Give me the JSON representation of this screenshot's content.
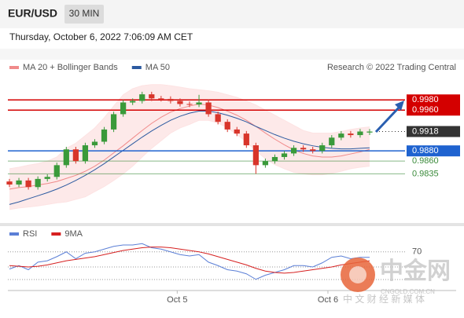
{
  "chart_data": {
    "type": "candlestick",
    "title": "EUR/USD",
    "interval": "30 MIN",
    "timestamp": "Thursday, October 6, 2022 7:06:09 AM CET",
    "attribution": "Research © 2022 Trading Central",
    "xlim": [
      0,
      38
    ],
    "xticks": [
      {
        "value": 17.7,
        "label": "Oct 5"
      },
      {
        "value": 33.6,
        "label": "Oct 6"
      }
    ],
    "ylim": [
      0.9737,
      1.0022
    ],
    "up_color": "#3a9a3a",
    "down_color": "#d8352b",
    "open": [
      0.982,
      0.9814,
      0.9822,
      0.9809,
      0.9825,
      0.9829,
      0.9852,
      0.9883,
      0.986,
      0.9891,
      0.9898,
      0.9922,
      0.9952,
      0.9975,
      0.9978,
      0.9991,
      0.9983,
      0.9982,
      0.9978,
      0.9972,
      0.9971,
      0.9975,
      0.9952,
      0.9937,
      0.9922,
      0.9914,
      0.9891,
      0.9852,
      0.986,
      0.9868,
      0.9875,
      0.9886,
      0.9883,
      0.988,
      0.9891,
      0.9906,
      0.9914,
      0.9911,
      0.9916
    ],
    "high": [
      0.9825,
      0.9827,
      0.9827,
      0.983,
      0.9834,
      0.9857,
      0.9888,
      0.9888,
      0.9896,
      0.9903,
      0.9927,
      0.9957,
      0.998,
      0.9983,
      0.9996,
      0.9996,
      0.9988,
      0.9987,
      0.9983,
      0.9977,
      0.999,
      0.998,
      0.9957,
      0.9942,
      0.9927,
      0.9919,
      0.9896,
      0.9865,
      0.9873,
      0.988,
      0.9891,
      0.9891,
      0.9888,
      0.9896,
      0.9911,
      0.9919,
      0.9919,
      0.9923,
      0.9923
    ],
    "low": [
      0.9809,
      0.9809,
      0.9804,
      0.9804,
      0.982,
      0.9824,
      0.9847,
      0.9855,
      0.9855,
      0.9886,
      0.9893,
      0.9917,
      0.9947,
      0.997,
      0.9973,
      0.9978,
      0.9977,
      0.9973,
      0.9967,
      0.9966,
      0.9966,
      0.9947,
      0.9932,
      0.9917,
      0.9909,
      0.9886,
      0.9835,
      0.9847,
      0.9855,
      0.9863,
      0.987,
      0.9878,
      0.9875,
      0.9875,
      0.9886,
      0.9901,
      0.9906,
      0.9906,
      0.9911
    ],
    "close": [
      0.9814,
      0.9822,
      0.9809,
      0.9825,
      0.9829,
      0.9852,
      0.9883,
      0.986,
      0.9891,
      0.9898,
      0.9922,
      0.9952,
      0.9975,
      0.9978,
      0.9991,
      0.9983,
      0.9982,
      0.9978,
      0.9972,
      0.9971,
      0.9975,
      0.9952,
      0.9937,
      0.9922,
      0.9914,
      0.9891,
      0.9852,
      0.986,
      0.9868,
      0.9875,
      0.9886,
      0.9883,
      0.988,
      0.9891,
      0.9906,
      0.9914,
      0.9911,
      0.9918,
      0.9918
    ],
    "overlays": [
      {
        "name": "MA 20 + Bollinger Bands",
        "color": "#f08a8a",
        "band_color": "#fde3e3",
        "values": [
          0.9805,
          0.9808,
          0.981,
          0.9813,
          0.9816,
          0.982,
          0.9826,
          0.9832,
          0.984,
          0.985,
          0.9862,
          0.9876,
          0.989,
          0.9905,
          0.992,
          0.9934,
          0.9946,
          0.9956,
          0.9963,
          0.9968,
          0.9972,
          0.997,
          0.9965,
          0.9958,
          0.995,
          0.994,
          0.9928,
          0.9915,
          0.9903,
          0.9892,
          0.9882,
          0.9875,
          0.987,
          0.9868,
          0.9868,
          0.987,
          0.9874,
          0.9878,
          0.9883
        ],
        "upper": [
          0.9845,
          0.9848,
          0.9852,
          0.9855,
          0.986,
          0.9868,
          0.9885,
          0.9895,
          0.991,
          0.9925,
          0.9945,
          0.9968,
          0.999,
          1.0002,
          1.0008,
          1.001,
          1.001,
          1.0008,
          1.0005,
          1.0002,
          1.0,
          0.9998,
          0.9995,
          0.999,
          0.9985,
          0.9978,
          0.997,
          0.996,
          0.995,
          0.994,
          0.993,
          0.992,
          0.9915,
          0.9915,
          0.9915,
          0.9918,
          0.9922,
          0.9925,
          0.9927
        ],
        "lower": [
          0.9765,
          0.9768,
          0.977,
          0.9772,
          0.9775,
          0.9778,
          0.978,
          0.9785,
          0.979,
          0.98,
          0.981,
          0.9822,
          0.9835,
          0.985,
          0.9868,
          0.9885,
          0.99,
          0.9915,
          0.9925,
          0.9932,
          0.994,
          0.994,
          0.9935,
          0.9925,
          0.9912,
          0.9898,
          0.988,
          0.9865,
          0.9853,
          0.9845,
          0.9838,
          0.9835,
          0.9833,
          0.9833,
          0.9836,
          0.984,
          0.9845,
          0.9848,
          0.985
        ]
      },
      {
        "name": "MA 50",
        "color": "#2c5aa0",
        "values": [
          0.9775,
          0.978,
          0.9786,
          0.9792,
          0.9798,
          0.9805,
          0.9813,
          0.9822,
          0.9832,
          0.9843,
          0.9855,
          0.9868,
          0.9881,
          0.9894,
          0.9907,
          0.9919,
          0.993,
          0.994,
          0.9948,
          0.9954,
          0.9958,
          0.9958,
          0.9955,
          0.995,
          0.9944,
          0.9937,
          0.9928,
          0.992,
          0.9912,
          0.9905,
          0.9899,
          0.9894,
          0.989,
          0.9887,
          0.9885,
          0.9884,
          0.9884,
          0.9885,
          0.9886
        ]
      }
    ],
    "levels": [
      {
        "value": 0.998,
        "label": "0.9980",
        "color": "#d40000",
        "boxed": true,
        "dotted": false
      },
      {
        "value": 0.996,
        "label": "0.9960",
        "color": "#d40000",
        "boxed": true,
        "dotted": false
      },
      {
        "value": 0.9918,
        "label": "0.9918",
        "color": "#333333",
        "boxed": true,
        "dotted": true
      },
      {
        "value": 0.988,
        "label": "0.9880",
        "color": "#1f63d0",
        "boxed": true,
        "dotted": false
      },
      {
        "value": 0.986,
        "label": "0.9860",
        "color": "#3a8a3a",
        "boxed": false,
        "dotted": false
      },
      {
        "value": 0.9835,
        "label": "0.9835",
        "color": "#3a8a3a",
        "boxed": false,
        "dotted": false
      }
    ],
    "indicator": {
      "type": "line",
      "ylim": [
        16,
        88
      ],
      "yticks": [
        70
      ],
      "series": [
        {
          "name": "RSI",
          "color": "#5b7fd6",
          "values": [
            45,
            50,
            44,
            55,
            57,
            63,
            70,
            60,
            68,
            70,
            74,
            78,
            80,
            80,
            82,
            76,
            74,
            70,
            66,
            64,
            66,
            55,
            50,
            44,
            42,
            38,
            30,
            36,
            40,
            44,
            50,
            50,
            48,
            54,
            62,
            64,
            60,
            62,
            62
          ]
        },
        {
          "name": "9MA",
          "color": "#d62020",
          "values": [
            50,
            49,
            48,
            49,
            51,
            54,
            57,
            59,
            61,
            63,
            66,
            69,
            72,
            74,
            76,
            77,
            77,
            76,
            74,
            72,
            70,
            67,
            63,
            59,
            55,
            51,
            46,
            42,
            40,
            39,
            40,
            42,
            44,
            46,
            48,
            51,
            53,
            55,
            57
          ]
        }
      ]
    }
  },
  "watermark": {
    "logo": "中金网",
    "site": "CNGOLD.COM.CN",
    "slogan": "中 文 财 经 新 媒 体"
  }
}
